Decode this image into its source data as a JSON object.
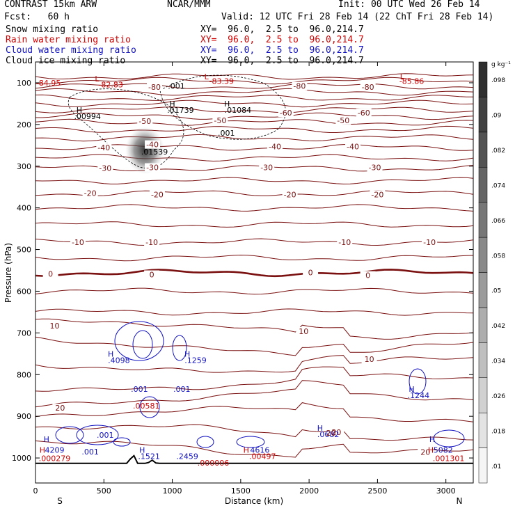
{
  "header": {
    "model": "CONTRAST 15km ARW",
    "center": "NCAR/MMM",
    "init": "Init: 00 UTC Wed 26 Feb 14",
    "fcst": "Fcst:   60 h",
    "valid": "Valid: 12 UTC Fri 28 Feb 14 (22 ChT Fri 28 Feb 14)",
    "fields": [
      {
        "name": "Snow mixing ratio",
        "xy": "XY=  96.0,  2.5 to  96.0,214.7",
        "color": "#000000"
      },
      {
        "name": "Rain water mixing ratio",
        "xy": "XY=  96.0,  2.5 to  96.0,214.7",
        "color": "#d00000"
      },
      {
        "name": "Cloud water mixing ratio",
        "xy": "XY=  96.0,  2.5 to  96.0,214.7",
        "color": "#1010c0"
      },
      {
        "name": "Cloud ice mixing ratio",
        "xy": "XY=  96.0,  2.5 to  96.0,214.7",
        "color": "#000000"
      }
    ]
  },
  "chart_data": {
    "type": "contour",
    "xlabel": "Distance (km)",
    "ylabel": "Pressure (hPa)",
    "xlim": [
      0,
      3200
    ],
    "ylim": [
      1060,
      50
    ],
    "xticks": [
      0,
      500,
      1000,
      1500,
      2000,
      2500,
      3000
    ],
    "yticks": [
      100,
      200,
      300,
      400,
      500,
      600,
      700,
      800,
      900,
      1000
    ],
    "end_labels": {
      "left": "S",
      "right": "N"
    },
    "colorbar": {
      "unit": "g kg⁻¹",
      "ticks": [
        ".01",
        ".018",
        ".026",
        ".034",
        ".042",
        ".05",
        ".058",
        ".066",
        ".074",
        ".082",
        ".09",
        ".098"
      ]
    },
    "temperature_contours": {
      "levels": [
        -80,
        -60,
        -50,
        -40,
        -30,
        -20,
        -10,
        0,
        10,
        20
      ],
      "labels": [
        {
          "text": "-80",
          "x": 870,
          "p": 110
        },
        {
          "text": "-80",
          "x": 1930,
          "p": 108
        },
        {
          "text": "-80",
          "x": 2430,
          "p": 110
        },
        {
          "text": "-60",
          "x": 1830,
          "p": 172
        },
        {
          "text": "-60",
          "x": 2400,
          "p": 172
        },
        {
          "text": "-50",
          "x": 800,
          "p": 192
        },
        {
          "text": "-50",
          "x": 1350,
          "p": 190
        },
        {
          "text": "-50",
          "x": 2250,
          "p": 190
        },
        {
          "text": "-40",
          "x": 500,
          "p": 255
        },
        {
          "text": "-40",
          "x": 855,
          "p": 248
        },
        {
          "text": "-40",
          "x": 1750,
          "p": 253
        },
        {
          "text": "-40",
          "x": 2320,
          "p": 253
        },
        {
          "text": "-30",
          "x": 510,
          "p": 305
        },
        {
          "text": "-30",
          "x": 855,
          "p": 303
        },
        {
          "text": "-30",
          "x": 1690,
          "p": 303
        },
        {
          "text": "-30",
          "x": 2480,
          "p": 303
        },
        {
          "text": "-20",
          "x": 400,
          "p": 365
        },
        {
          "text": "-20",
          "x": 890,
          "p": 368
        },
        {
          "text": "-20",
          "x": 1860,
          "p": 368
        },
        {
          "text": "-20",
          "x": 2500,
          "p": 368
        },
        {
          "text": "-10",
          "x": 310,
          "p": 482
        },
        {
          "text": "-10",
          "x": 850,
          "p": 482
        },
        {
          "text": "-10",
          "x": 2260,
          "p": 482
        },
        {
          "text": "-10",
          "x": 2880,
          "p": 482
        },
        {
          "text": "0",
          "x": 110,
          "p": 558
        },
        {
          "text": "0",
          "x": 850,
          "p": 560
        },
        {
          "text": "0",
          "x": 2010,
          "p": 555
        },
        {
          "text": "0",
          "x": 2430,
          "p": 562
        },
        {
          "text": "10",
          "x": 140,
          "p": 683
        },
        {
          "text": "10",
          "x": 1960,
          "p": 696
        },
        {
          "text": "10",
          "x": 2440,
          "p": 763
        },
        {
          "text": "20",
          "x": 180,
          "p": 880
        },
        {
          "text": "20",
          "x": 2200,
          "p": 938
        },
        {
          "text": "20",
          "x": 2850,
          "p": 986
        }
      ]
    },
    "extrema_labels": [
      {
        "text": "L",
        "x": 450,
        "p": 90,
        "color": "#d00000"
      },
      {
        "text": "L",
        "x": 1250,
        "p": 85,
        "color": "#d00000"
      },
      {
        "text": "L",
        "x": 2680,
        "p": 85,
        "color": "#d00000"
      },
      {
        "text": "-84.95",
        "x": 95,
        "p": 100,
        "color": "#d00000"
      },
      {
        "text": "-82.83",
        "x": 550,
        "p": 104,
        "color": "#d00000"
      },
      {
        "text": "-83.39",
        "x": 1360,
        "p": 96,
        "color": "#d00000"
      },
      {
        "text": "-85.86",
        "x": 2750,
        "p": 96,
        "color": "#d00000"
      },
      {
        "text": ".001",
        "x": 1030,
        "p": 108,
        "color": "#000000"
      },
      {
        "text": "H",
        "x": 320,
        "p": 165,
        "color": "#000000"
      },
      {
        "text": ".00994",
        "x": 380,
        "p": 180,
        "color": "#000000"
      },
      {
        "text": "H",
        "x": 1000,
        "p": 150,
        "color": "#000000"
      },
      {
        "text": ".01739",
        "x": 1060,
        "p": 165,
        "color": "#000000"
      },
      {
        "text": "H",
        "x": 1400,
        "p": 150,
        "color": "#000000"
      },
      {
        "text": ".01084",
        "x": 1480,
        "p": 165,
        "color": "#000000"
      },
      {
        "text": ".001",
        "x": 1395,
        "p": 220,
        "color": "#000000"
      },
      {
        "text": ".01539",
        "x": 870,
        "p": 265,
        "color": "#000000"
      },
      {
        "text": "H",
        "x": 550,
        "p": 750,
        "color": "#1010c0"
      },
      {
        "text": ".4098",
        "x": 610,
        "p": 765,
        "color": "#1010c0"
      },
      {
        "text": "H",
        "x": 1110,
        "p": 750,
        "color": "#1010c0"
      },
      {
        "text": ".1259",
        "x": 1170,
        "p": 765,
        "color": "#1010c0"
      },
      {
        "text": ".001",
        "x": 760,
        "p": 835,
        "color": "#1010c0"
      },
      {
        "text": ".001",
        "x": 1070,
        "p": 835,
        "color": "#1010c0"
      },
      {
        "text": ".00581",
        "x": 810,
        "p": 875,
        "color": "#d00000"
      },
      {
        "text": "H",
        "x": 2750,
        "p": 835,
        "color": "#1010c0"
      },
      {
        "text": ".1244",
        "x": 2800,
        "p": 850,
        "color": "#1010c0"
      },
      {
        "text": "H",
        "x": 2080,
        "p": 928,
        "color": "#1010c0"
      },
      {
        "text": ".0682",
        "x": 2140,
        "p": 943,
        "color": "#1010c0"
      },
      {
        "text": ".001",
        "x": 510,
        "p": 945,
        "color": "#1010c0"
      },
      {
        "text": ".001",
        "x": 400,
        "p": 985,
        "color": "#1010c0"
      },
      {
        "text": "H",
        "x": 80,
        "p": 955,
        "color": "#1010c0"
      },
      {
        "text": "H",
        "x": 50,
        "p": 981,
        "color": "#d00000"
      },
      {
        "text": "4209",
        "x": 140,
        "p": 981,
        "color": "#1010c0"
      },
      {
        "text": ".000279",
        "x": 140,
        "p": 1001,
        "color": "#d00000"
      },
      {
        "text": "H",
        "x": 780,
        "p": 981,
        "color": "#1010c0"
      },
      {
        "text": ".1521",
        "x": 830,
        "p": 996,
        "color": "#1010c0"
      },
      {
        "text": ".2459",
        "x": 1110,
        "p": 996,
        "color": "#1010c0"
      },
      {
        "text": ".000006",
        "x": 1300,
        "p": 1012,
        "color": "#d00000"
      },
      {
        "text": "H",
        "x": 1540,
        "p": 981,
        "color": "#d00000"
      },
      {
        "text": "4616",
        "x": 1640,
        "p": 981,
        "color": "#1010c0"
      },
      {
        "text": ".00497",
        "x": 1660,
        "p": 996,
        "color": "#d00000"
      },
      {
        "text": "20",
        "x": 2160,
        "p": 940,
        "color": "#7a1010"
      },
      {
        "text": "H",
        "x": 2900,
        "p": 955,
        "color": "#1010c0"
      },
      {
        "text": "H",
        "x": 2890,
        "p": 981,
        "color": "#d00000"
      },
      {
        "text": "5082",
        "x": 2980,
        "p": 981,
        "color": "#1010c0"
      },
      {
        "text": ".001301",
        "x": 3020,
        "p": 1001,
        "color": "#d00000"
      }
    ]
  }
}
